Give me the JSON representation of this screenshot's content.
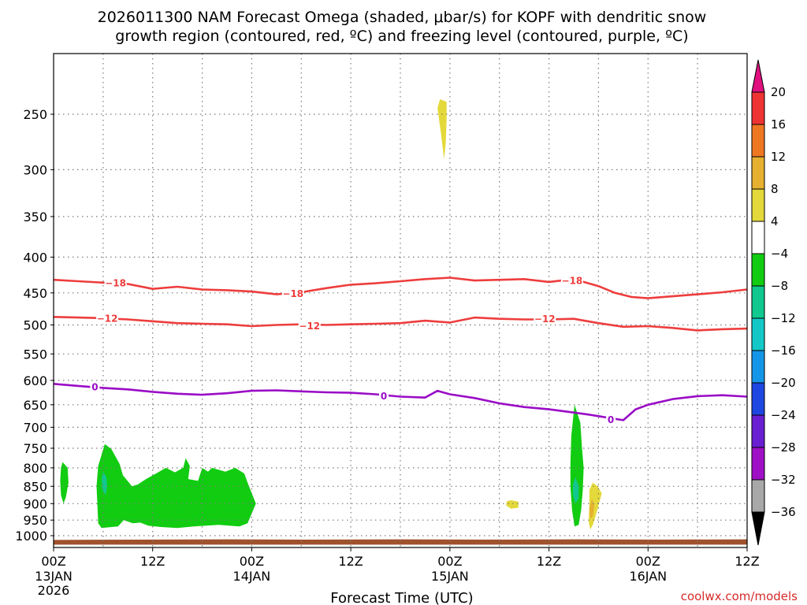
{
  "chart_data": {
    "type": "contour",
    "title_line1": "2026011300 NAM Forecast Omega (shaded, μbar/s) for KOPF with dendritic snow",
    "title_line2": "growth region (contoured, red, ºC) and freezing level (contoured, purple, ºC)",
    "xlabel": "Forecast Time (UTC)",
    "ylabel": "",
    "credit": "coolwx.com/models",
    "x_range_hours": [
      0,
      84
    ],
    "y_range_hpa": [
      200,
      1030
    ],
    "x_ticks": [
      {
        "hour": 0,
        "label": "00Z",
        "sub1": "13JAN",
        "sub2": "2026"
      },
      {
        "hour": 12,
        "label": "12Z",
        "sub1": "",
        "sub2": ""
      },
      {
        "hour": 24,
        "label": "00Z",
        "sub1": "14JAN",
        "sub2": ""
      },
      {
        "hour": 36,
        "label": "12Z",
        "sub1": "",
        "sub2": ""
      },
      {
        "hour": 48,
        "label": "00Z",
        "sub1": "15JAN",
        "sub2": ""
      },
      {
        "hour": 60,
        "label": "12Z",
        "sub1": "",
        "sub2": ""
      },
      {
        "hour": 72,
        "label": "00Z",
        "sub1": "16JAN",
        "sub2": ""
      },
      {
        "hour": 84,
        "label": "12Z",
        "sub1": "",
        "sub2": ""
      }
    ],
    "x_grid_hours": [
      6,
      12,
      18,
      24,
      30,
      36,
      42,
      48,
      54,
      60,
      66,
      72,
      78
    ],
    "y_ticks": [
      250,
      300,
      350,
      400,
      450,
      500,
      550,
      600,
      650,
      700,
      750,
      800,
      850,
      900,
      950,
      1000
    ],
    "colorbar": {
      "labels": [
        "20",
        "16",
        "12",
        "8",
        "4",
        "−4",
        "−8",
        "−12",
        "−16",
        "−20",
        "−24",
        "−28",
        "−32",
        "−36"
      ],
      "top_color": "#e0107f",
      "bottom_color": "#000000",
      "segment_colors": [
        "#ee3333",
        "#ee7722",
        "#e6b030",
        "#e4d93a",
        "#ffffff",
        "#11cc11",
        "#11c88e",
        "#14c8c8",
        "#1496e8",
        "#1e46e0",
        "#6a1ed2",
        "#9f0fc6",
        "#a8a8a8"
      ]
    },
    "contours": [
      {
        "name": "-18",
        "label": "−18",
        "color": "#ee3d3d",
        "points": [
          [
            0,
            431
          ],
          [
            3,
            433
          ],
          [
            6,
            435
          ],
          [
            9,
            437
          ],
          [
            12,
            444
          ],
          [
            15,
            441
          ],
          [
            18,
            445
          ],
          [
            21,
            446
          ],
          [
            24,
            448
          ],
          [
            27,
            452
          ],
          [
            30,
            449
          ],
          [
            33,
            443
          ],
          [
            36,
            438
          ],
          [
            39,
            436
          ],
          [
            42,
            433
          ],
          [
            45,
            430
          ],
          [
            48,
            428
          ],
          [
            51,
            432
          ],
          [
            54,
            431
          ],
          [
            57,
            430
          ],
          [
            60,
            434
          ],
          [
            63,
            430
          ],
          [
            66,
            440
          ],
          [
            68,
            450
          ],
          [
            70,
            456
          ],
          [
            72,
            458
          ],
          [
            75,
            455
          ],
          [
            78,
            452
          ],
          [
            81,
            449
          ],
          [
            84,
            445
          ]
        ],
        "label_positions": [
          [
            7.5,
            435
          ],
          [
            29,
            451
          ],
          [
            62.8,
            432
          ]
        ]
      },
      {
        "name": "-12",
        "label": "−12",
        "color": "#ee3d3d",
        "points": [
          [
            0,
            487
          ],
          [
            3,
            488
          ],
          [
            6,
            489
          ],
          [
            9,
            491
          ],
          [
            12,
            494
          ],
          [
            15,
            497
          ],
          [
            18,
            498
          ],
          [
            21,
            499
          ],
          [
            24,
            502
          ],
          [
            27,
            500
          ],
          [
            30,
            499
          ],
          [
            33,
            500
          ],
          [
            36,
            499
          ],
          [
            39,
            498
          ],
          [
            42,
            497
          ],
          [
            45,
            493
          ],
          [
            48,
            496
          ],
          [
            51,
            488
          ],
          [
            54,
            490
          ],
          [
            57,
            491
          ],
          [
            60,
            491
          ],
          [
            63,
            490
          ],
          [
            66,
            497
          ],
          [
            69,
            503
          ],
          [
            72,
            502
          ],
          [
            75,
            505
          ],
          [
            78,
            509
          ],
          [
            81,
            507
          ],
          [
            84,
            506
          ]
        ],
        "label_positions": [
          [
            6.5,
            489
          ],
          [
            31,
            501
          ],
          [
            59.5,
            490
          ]
        ]
      },
      {
        "name": "0",
        "label": "0",
        "color": "#9a0cc6",
        "points": [
          [
            0,
            607
          ],
          [
            3,
            611
          ],
          [
            6,
            615
          ],
          [
            9,
            618
          ],
          [
            12,
            623
          ],
          [
            15,
            627
          ],
          [
            18,
            629
          ],
          [
            21,
            626
          ],
          [
            24,
            621
          ],
          [
            27,
            620
          ],
          [
            30,
            622
          ],
          [
            33,
            624
          ],
          [
            36,
            625
          ],
          [
            39,
            628
          ],
          [
            42,
            633
          ],
          [
            45,
            635
          ],
          [
            46.5,
            621
          ],
          [
            48,
            628
          ],
          [
            51,
            636
          ],
          [
            54,
            647
          ],
          [
            57,
            655
          ],
          [
            60,
            660
          ],
          [
            63,
            667
          ],
          [
            65,
            672
          ],
          [
            67,
            678
          ],
          [
            69,
            684
          ],
          [
            70.5,
            660
          ],
          [
            72,
            650
          ],
          [
            75,
            638
          ],
          [
            78,
            632
          ],
          [
            81,
            630
          ],
          [
            84,
            633
          ]
        ],
        "label_positions": [
          [
            5,
            613
          ],
          [
            40,
            631
          ],
          [
            67.5,
            682
          ]
        ]
      }
    ],
    "omega_regions": [
      {
        "name": "upward-6-a",
        "value": -6,
        "color": "#11cc11",
        "points": [
          [
            1.1,
            785
          ],
          [
            1.7,
            800
          ],
          [
            1.8,
            840
          ],
          [
            1.5,
            880
          ],
          [
            1.2,
            900
          ],
          [
            0.9,
            875
          ],
          [
            0.8,
            835
          ],
          [
            0.9,
            800
          ]
        ]
      },
      {
        "name": "upward-6-b",
        "value": -6,
        "color": "#11cc11",
        "points": [
          [
            5.4,
            795
          ],
          [
            5.9,
            760
          ],
          [
            6.2,
            740
          ],
          [
            7.0,
            752
          ],
          [
            8.0,
            790
          ],
          [
            8.4,
            820
          ],
          [
            9.5,
            850
          ],
          [
            10.2,
            845
          ],
          [
            11.2,
            830
          ],
          [
            12.4,
            815
          ],
          [
            13.6,
            800
          ],
          [
            14.7,
            812
          ],
          [
            15.7,
            800
          ],
          [
            16.0,
            775
          ],
          [
            16.5,
            795
          ],
          [
            16.3,
            830
          ],
          [
            17.5,
            835
          ],
          [
            18.0,
            800
          ],
          [
            18.7,
            810
          ],
          [
            19.2,
            800
          ],
          [
            20.8,
            810
          ],
          [
            22.0,
            800
          ],
          [
            23.1,
            815
          ],
          [
            23.5,
            840
          ],
          [
            24.5,
            900
          ],
          [
            23.5,
            960
          ],
          [
            22.5,
            970
          ],
          [
            20.0,
            965
          ],
          [
            17.0,
            970
          ],
          [
            15.0,
            975
          ],
          [
            13.0,
            972
          ],
          [
            11.5,
            968
          ],
          [
            10.5,
            958
          ],
          [
            9.6,
            960
          ],
          [
            8.5,
            950
          ],
          [
            7.8,
            970
          ],
          [
            5.8,
            975
          ],
          [
            5.4,
            960
          ],
          [
            5.3,
            900
          ],
          [
            5.2,
            850
          ]
        ]
      },
      {
        "name": "upward-6-c",
        "value": -6,
        "color": "#11cc11",
        "points": [
          [
            63.1,
            650
          ],
          [
            63.8,
            690
          ],
          [
            64.0,
            750
          ],
          [
            64.2,
            800
          ],
          [
            64.1,
            860
          ],
          [
            63.9,
            920
          ],
          [
            63.6,
            965
          ],
          [
            63.1,
            970
          ],
          [
            62.8,
            920
          ],
          [
            62.6,
            850
          ],
          [
            62.6,
            790
          ],
          [
            62.7,
            720
          ]
        ]
      },
      {
        "name": "upward-10-a",
        "value": -10,
        "color": "#11c88e",
        "points": [
          [
            6.0,
            810
          ],
          [
            6.4,
            825
          ],
          [
            6.5,
            850
          ],
          [
            6.3,
            875
          ],
          [
            5.9,
            860
          ],
          [
            5.8,
            830
          ]
        ]
      },
      {
        "name": "upward-10-b",
        "value": -10,
        "color": "#11c88e",
        "points": [
          [
            63.2,
            825
          ],
          [
            63.6,
            850
          ],
          [
            63.6,
            885
          ],
          [
            63.2,
            900
          ],
          [
            62.9,
            875
          ],
          [
            62.9,
            845
          ]
        ]
      },
      {
        "name": "downward-6-a",
        "value": 6,
        "color": "#e4d93a",
        "points": [
          [
            46.8,
            238
          ],
          [
            47.6,
            240
          ],
          [
            47.6,
            255
          ],
          [
            47.5,
            275
          ],
          [
            47.3,
            290
          ],
          [
            46.9,
            265
          ],
          [
            46.5,
            245
          ]
        ]
      },
      {
        "name": "downward-6-b",
        "value": 6,
        "color": "#e4d93a",
        "points": [
          [
            55.4,
            890
          ],
          [
            56.3,
            894
          ],
          [
            56.3,
            912
          ],
          [
            55.4,
            915
          ],
          [
            54.8,
            905
          ],
          [
            54.9,
            893
          ]
        ]
      },
      {
        "name": "downward-6-c",
        "value": 6,
        "color": "#e4d93a",
        "points": [
          [
            65.3,
            840
          ],
          [
            65.9,
            850
          ],
          [
            66.4,
            870
          ],
          [
            65.9,
            915
          ],
          [
            65.4,
            960
          ],
          [
            65.0,
            980
          ],
          [
            64.8,
            955
          ],
          [
            64.9,
            900
          ],
          [
            64.9,
            860
          ]
        ]
      },
      {
        "name": "downward-10-a",
        "value": 10,
        "color": "#e6b030",
        "points": [
          [
            65.2,
            885
          ],
          [
            65.5,
            905
          ],
          [
            65.3,
            940
          ],
          [
            65.0,
            945
          ],
          [
            64.9,
            915
          ]
        ]
      }
    ],
    "terrain": {
      "name": "surface-ground",
      "color": "#a0522d",
      "top_hpa": [
        1014,
        1013,
        1012,
        1013,
        1012,
        1013,
        1012,
        1013,
        1012
      ],
      "bottom_hpa": 1030
    }
  }
}
